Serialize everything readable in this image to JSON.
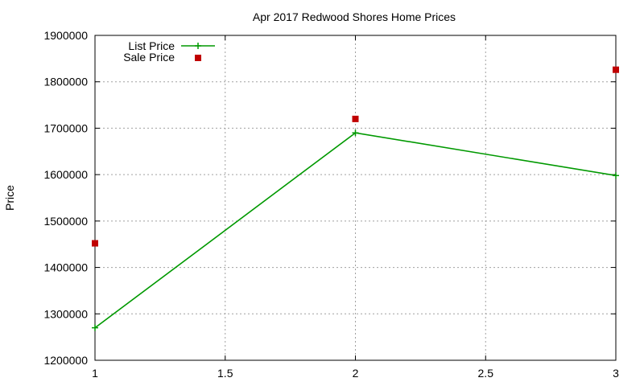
{
  "chart_data": {
    "type": "line",
    "title": "Apr 2017 Redwood Shores Home Prices",
    "xlabel": "",
    "ylabel": "Price",
    "xlim": [
      1,
      3
    ],
    "ylim": [
      1200000,
      1900000
    ],
    "x_ticks": [
      "1",
      "1.5",
      "2",
      "2.5",
      "3"
    ],
    "y_ticks": [
      "1200000",
      "1300000",
      "1400000",
      "1500000",
      "1600000",
      "1700000",
      "1800000",
      "1900000"
    ],
    "grid": true,
    "legend_position": "top-left",
    "series": [
      {
        "name": "List Price",
        "style": "line-with-plus-markers",
        "color": "#009900",
        "x": [
          1,
          2,
          3
        ],
        "values": [
          1270000,
          1690000,
          1598000
        ]
      },
      {
        "name": "Sale Price",
        "style": "square-markers",
        "color": "#c00000",
        "x": [
          1,
          2,
          3
        ],
        "values": [
          1452000,
          1720000,
          1826000
        ]
      }
    ]
  }
}
